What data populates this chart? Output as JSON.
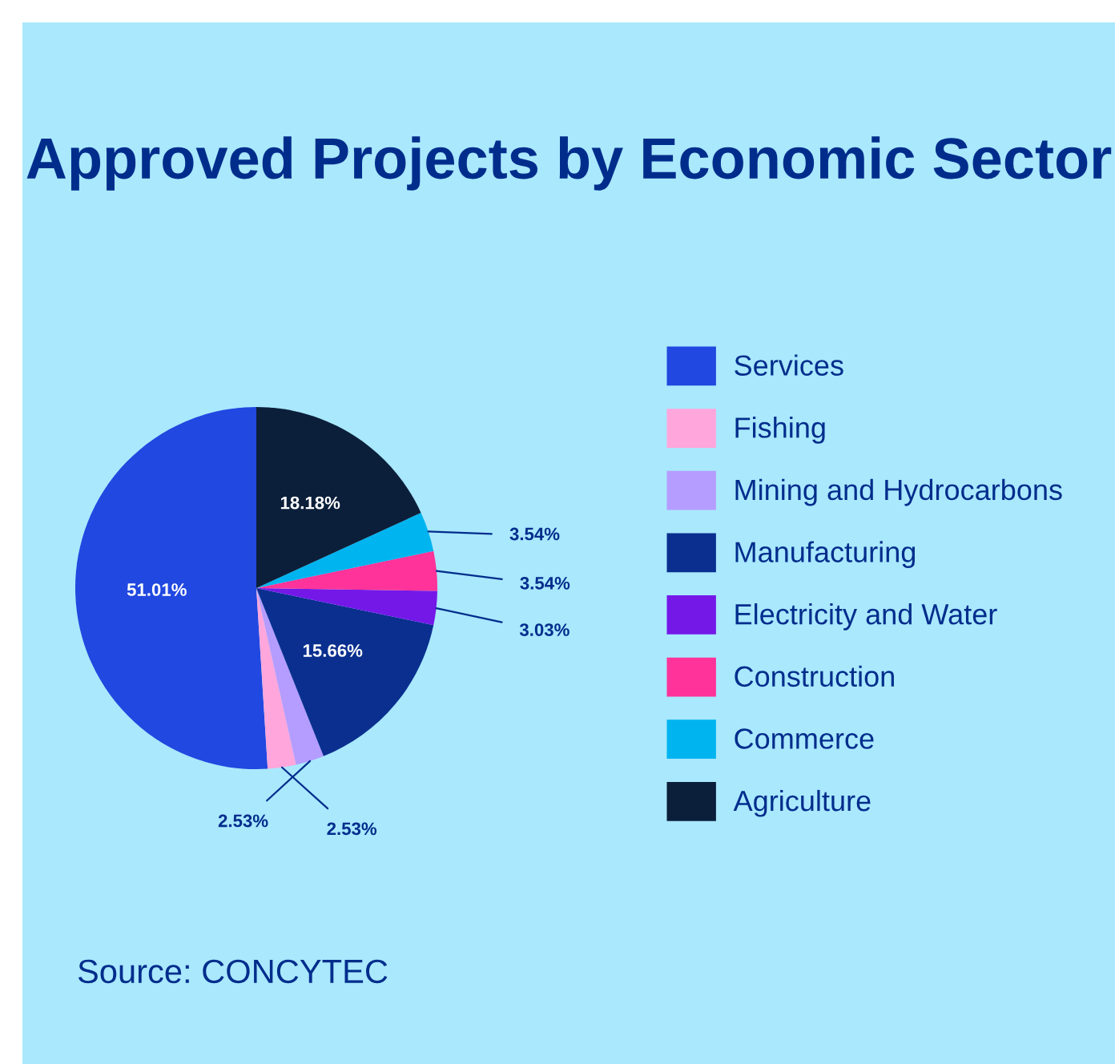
{
  "chart_data": {
    "type": "pie",
    "title": "Approved Projects by Economic Sector",
    "categories": [
      "Services",
      "Fishing",
      "Mining and Hydrocarbons",
      "Manufacturing",
      "Electricity and Water",
      "Construction",
      "Commerce",
      "Agriculture"
    ],
    "values": [
      51.01,
      2.53,
      2.53,
      15.66,
      3.03,
      3.54,
      3.54,
      18.18
    ],
    "colors": [
      "#2148e0",
      "#ffa6dc",
      "#b59cff",
      "#0a2f8f",
      "#7418e8",
      "#ff3399",
      "#00b4f0",
      "#0b1f3a"
    ],
    "value_labels": [
      "51.01%",
      "2.53%",
      "2.53%",
      "15.66%",
      "3.03%",
      "3.54%",
      "3.54%",
      "18.18%"
    ],
    "legend": "right",
    "annotations": [
      "Source: CONCYTEC"
    ]
  }
}
